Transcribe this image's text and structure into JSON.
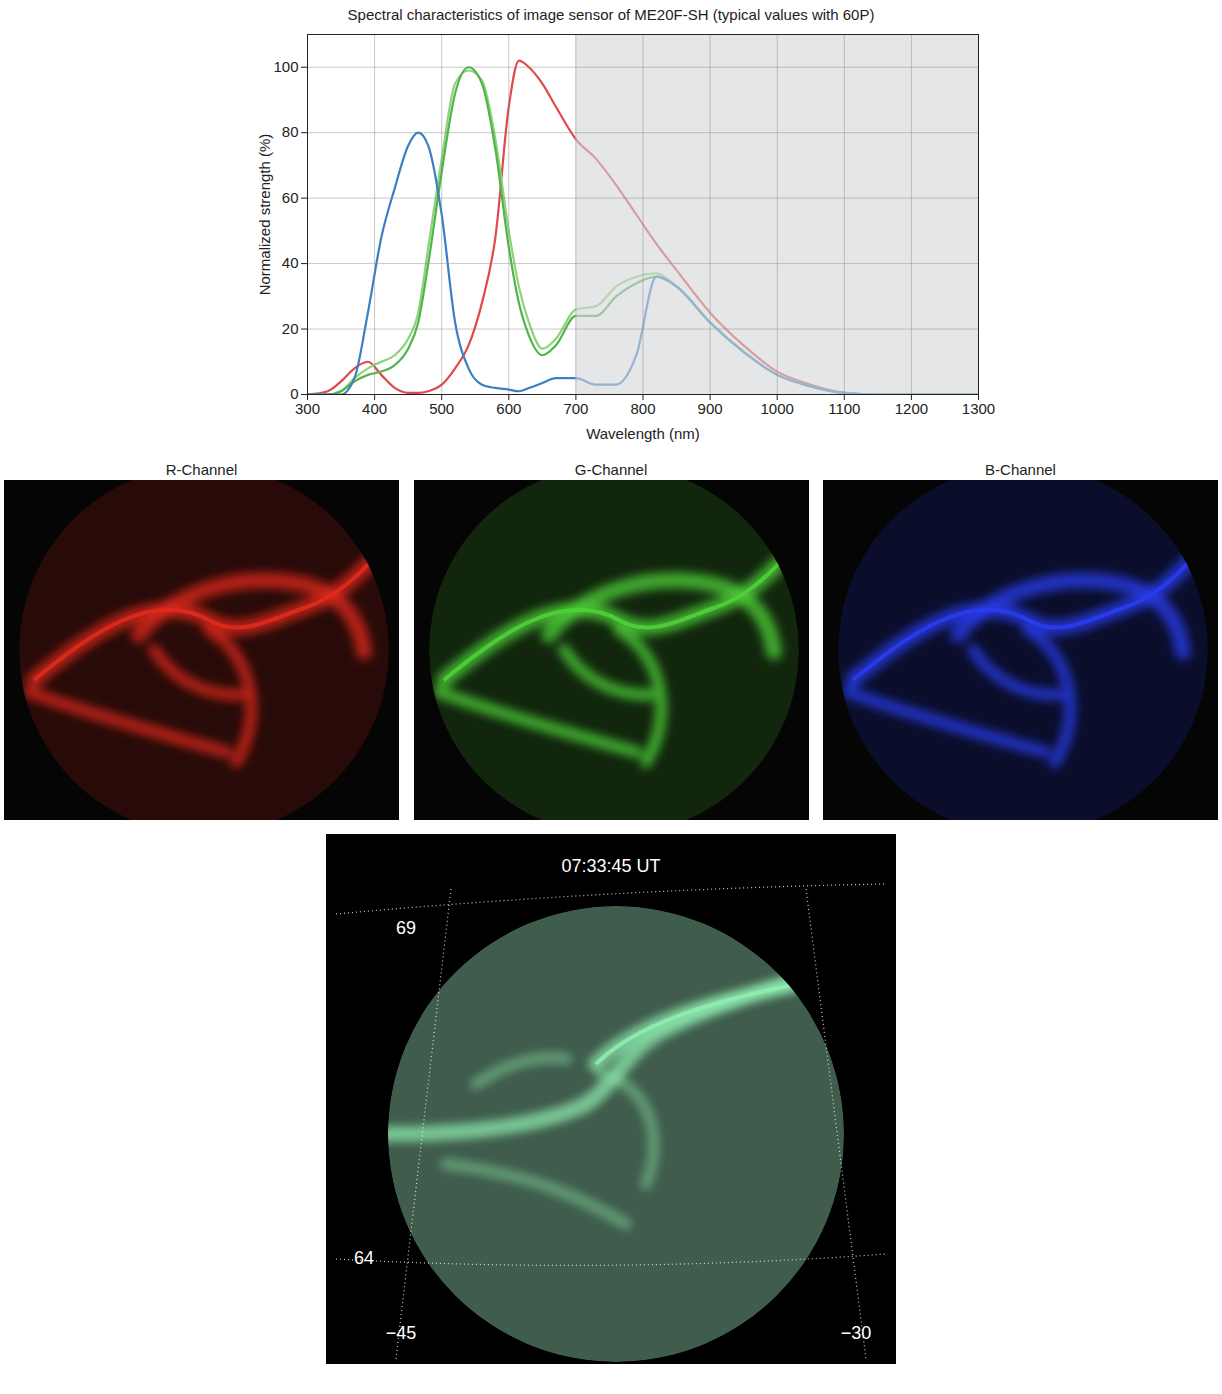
{
  "chart_data": {
    "type": "line",
    "title": "Spectral characteristics of image sensor of ME20F-SH (typical values with 60P)",
    "xlabel": "Wavelength (nm)",
    "ylabel": "Normalized strength (%)",
    "x": [
      300,
      330,
      350,
      370,
      390,
      410,
      430,
      450,
      465,
      480,
      500,
      520,
      540,
      560,
      580,
      600,
      615,
      630,
      650,
      670,
      700,
      730,
      760,
      790,
      820,
      850,
      900,
      950,
      1000,
      1050,
      1100,
      1150,
      1200,
      1300
    ],
    "series": [
      {
        "color": "#e0494b",
        "values": [
          0,
          1,
          4,
          8,
          10,
          6,
          2,
          0.5,
          0.5,
          1,
          3,
          8,
          15,
          28,
          48,
          88,
          102,
          100,
          95,
          88,
          78,
          72,
          64,
          55,
          46,
          38,
          25,
          15,
          7,
          3,
          0.5,
          0,
          0,
          0
        ]
      },
      {
        "color": "#8fd27e",
        "values": [
          0,
          0,
          1,
          5,
          8,
          10,
          12,
          17,
          25,
          45,
          72,
          95,
          99,
          96,
          78,
          50,
          33,
          22,
          14,
          17,
          26,
          27,
          33,
          36,
          37,
          33,
          22,
          13,
          6,
          2.5,
          0.5,
          0,
          0,
          0
        ]
      },
      {
        "color": "#4fb548",
        "values": [
          0,
          0,
          1,
          4,
          6,
          7,
          9,
          14,
          22,
          40,
          68,
          92,
          100,
          95,
          75,
          45,
          28,
          18,
          12,
          15,
          24,
          24,
          30,
          34,
          36,
          33,
          22,
          13,
          6,
          2.5,
          0.5,
          0,
          0,
          0
        ]
      },
      {
        "color": "#3a7fc4",
        "values": [
          0,
          0,
          0,
          5,
          25,
          48,
          63,
          76,
          80,
          76,
          55,
          22,
          8,
          3,
          2,
          1.5,
          1,
          2,
          3.5,
          5,
          5,
          3,
          3,
          12,
          36,
          33,
          22,
          13,
          6,
          2.5,
          0.5,
          0,
          0,
          0
        ]
      }
    ],
    "shaded_region": {
      "x": [
        700,
        1300
      ],
      "color": "#d4d5d7"
    },
    "xlim": [
      300,
      1300
    ],
    "xticks": [
      300,
      400,
      500,
      600,
      700,
      800,
      900,
      1000,
      1100,
      1200,
      1300
    ],
    "ylim": [
      0,
      110
    ],
    "yticks": [
      0,
      20,
      40,
      60,
      80,
      100
    ],
    "grid": true
  },
  "channel_images": [
    {
      "title": "R-Channel",
      "color": "#e02a1c"
    },
    {
      "title": "G-Channel",
      "color": "#4fd23a"
    },
    {
      "title": "B-Channel",
      "color": "#2a3cf0"
    }
  ],
  "map_image": {
    "time": "07:33:45 UT",
    "latitude_labels": [
      69,
      64
    ],
    "longitude_labels": [
      {
        "value": -45,
        "label": "−45"
      },
      {
        "value": -30,
        "label": "−30"
      }
    ],
    "color": "#8ef0b0"
  }
}
